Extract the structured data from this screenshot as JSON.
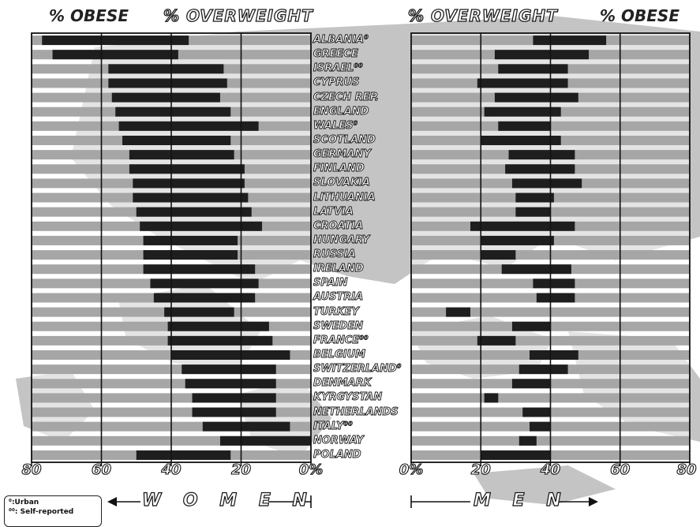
{
  "headers": {
    "women_obese": "% OBESE",
    "women_overweight": "% OVERWEIGHT",
    "men_overweight": "% OVERWEIGHT",
    "men_obese": "% OBESE"
  },
  "gender_labels": {
    "women": "W O M E N",
    "men": "M E N"
  },
  "legend": {
    "urban": "⁰:Urban",
    "self_reported": "⁰⁰: Self-reported"
  },
  "axis_ticks": {
    "women": [
      "80",
      "60",
      "40",
      "20",
      "0%"
    ],
    "men": [
      "0%",
      "20",
      "40",
      "60",
      "80"
    ]
  },
  "colors": {
    "obese_bar": "#1e1e1e",
    "overweight_bar": "#a6a6a6",
    "map_land": "#c4c4c4",
    "plot_background": "#ffffff"
  },
  "chart_data": {
    "type": "bar",
    "orientation": "horizontal",
    "xlim": [
      0,
      80
    ],
    "categories": [
      "ALBANIA⁰",
      "GREECE",
      "ISRAEL⁰⁰",
      "CYPRUS",
      "CZECH REP.",
      "ENGLAND",
      "WALES⁰",
      "SCOTLAND",
      "GERMANY",
      "FINLAND",
      "SLOVAKIA",
      "LITHUANIA",
      "LATVIA",
      "CROATIA",
      "HUNGARY",
      "RUSSIA",
      "IRELAND",
      "SPAIN",
      "AUSTRIA",
      "TURKEY",
      "SWEDEN",
      "FRANCE⁰⁰",
      "BELGIUM",
      "SWITZERLAND⁰",
      "DENMARK",
      "KYRGYSTAN",
      "NETHERLANDS",
      "ITALY⁰⁰",
      "NORWAY",
      "POLAND"
    ],
    "series": [
      {
        "name": "% OVERWEIGHT",
        "gender": "women",
        "values": [
          80,
          80,
          80,
          80,
          80,
          80,
          80,
          80,
          80,
          80,
          80,
          80,
          80,
          80,
          80,
          80,
          80,
          80,
          80,
          80,
          80,
          80,
          80,
          80,
          80,
          80,
          80,
          80,
          80,
          80
        ]
      },
      {
        "name": "% OBESE",
        "gender": "women",
        "values": [
          42,
          36,
          33,
          34,
          31,
          33,
          40,
          31,
          30,
          33,
          32,
          33,
          33,
          35,
          27,
          27,
          32,
          31,
          29,
          20,
          29,
          30,
          34,
          27,
          26,
          24,
          24,
          25,
          26,
          27
        ]
      },
      {
        "name": "% OVERWEIGHT",
        "gender": "men",
        "values": [
          80,
          80,
          80,
          80,
          80,
          80,
          80,
          80,
          80,
          80,
          80,
          80,
          80,
          80,
          80,
          80,
          80,
          80,
          80,
          80,
          80,
          80,
          80,
          80,
          80,
          80,
          80,
          80,
          80,
          80
        ]
      },
      {
        "name": "% OBESE",
        "gender": "men",
        "values": [
          21,
          27,
          20,
          26,
          24,
          22,
          15,
          23,
          19,
          20,
          20,
          11,
          10,
          30,
          21,
          10,
          20,
          12,
          11,
          7,
          11,
          11,
          14,
          14,
          11,
          4,
          8,
          6,
          5,
          20
        ]
      }
    ],
    "overweight_totals": {
      "women": [
        77,
        74,
        58,
        58,
        57,
        56,
        55,
        54,
        52,
        52,
        51,
        51,
        50,
        49,
        48,
        48,
        48,
        46,
        45,
        42,
        41,
        41,
        40,
        37,
        36,
        34,
        34,
        31,
        26,
        50
      ],
      "men": [
        56,
        51,
        45,
        45,
        48,
        43,
        40,
        43,
        47,
        47,
        49,
        41,
        40,
        47,
        41,
        30,
        46,
        47,
        47,
        17,
        40,
        30,
        48,
        45,
        40,
        25,
        40,
        40,
        36,
        40
      ]
    }
  }
}
